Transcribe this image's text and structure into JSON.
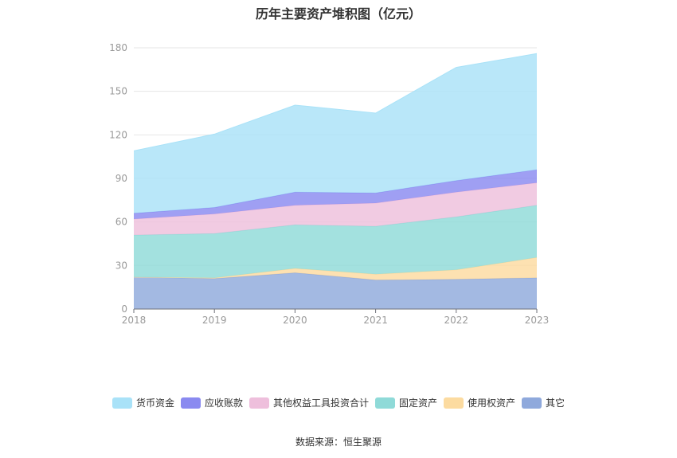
{
  "chart_data": {
    "type": "area",
    "stacked": true,
    "title": "历年主要资产堆积图（亿元）",
    "x": [
      "2018",
      "2019",
      "2020",
      "2021",
      "2022",
      "2023"
    ],
    "ylim": [
      0,
      180
    ],
    "yticks": [
      0,
      30,
      60,
      90,
      120,
      150,
      180
    ],
    "grid": true,
    "legend_position": "bottom",
    "series": [
      {
        "name": "其它",
        "color": "#8fa9dc",
        "values": [
          22,
          21,
          25,
          20,
          20.5,
          21.5
        ]
      },
      {
        "name": "使用权资产",
        "color": "#fcdba0",
        "values": [
          0,
          0.5,
          3,
          4,
          6.5,
          14
        ]
      },
      {
        "name": "固定资产",
        "color": "#8fdad8",
        "values": [
          29,
          30.5,
          30,
          33,
          36.5,
          36
        ]
      },
      {
        "name": "其他权益工具投资合计",
        "color": "#eebfdc",
        "values": [
          11,
          13.5,
          13.5,
          16,
          17,
          15.5
        ]
      },
      {
        "name": "应收账款",
        "color": "#8a8af0",
        "values": [
          4,
          4.5,
          9,
          7,
          8,
          9
        ]
      },
      {
        "name": "货币资金",
        "color": "#a9e2f8",
        "values": [
          43,
          50.5,
          60,
          55,
          78,
          80
        ]
      }
    ]
  },
  "legend_order": [
    "货币资金",
    "应收账款",
    "其他权益工具投资合计",
    "固定资产",
    "使用权资产",
    "其它"
  ],
  "source": "数据来源：恒生聚源"
}
